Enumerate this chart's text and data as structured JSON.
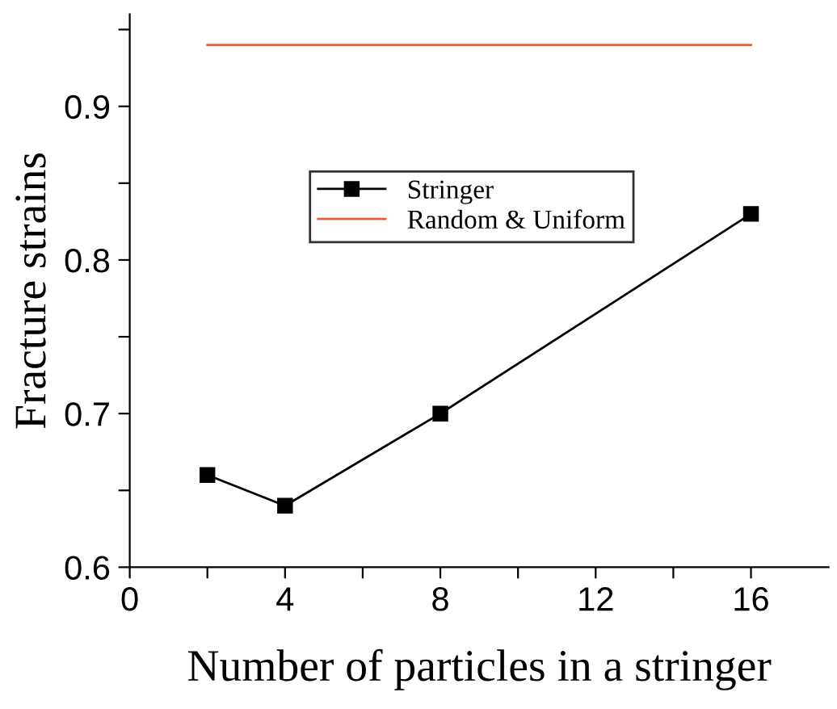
{
  "chart_data": {
    "type": "line",
    "xlabel": "Number of particles in a stringer",
    "ylabel": "Fracture strains",
    "series": [
      {
        "name": "Stringer",
        "color": "#000000",
        "x": [
          2,
          4,
          8,
          16
        ],
        "values": [
          0.66,
          0.64,
          0.7,
          0.83
        ],
        "marker": "square"
      },
      {
        "name": "Random & Uniform",
        "color": "#f05a3c",
        "x": [
          2,
          16
        ],
        "values": [
          0.94,
          0.94
        ],
        "marker": "none"
      }
    ],
    "xlim": [
      0,
      18
    ],
    "ylim": [
      0.6,
      0.96
    ],
    "xticks": [
      0,
      {
        "value": 2,
        "label": null
      },
      4,
      {
        "value": 6,
        "label": null
      },
      8,
      {
        "value": 10,
        "label": null
      },
      12,
      {
        "value": 14,
        "label": null
      },
      16
    ],
    "yticks": [
      0.6,
      {
        "value": 0.65,
        "label": null
      },
      0.7,
      {
        "value": 0.75,
        "label": null
      },
      0.8,
      {
        "value": 0.85,
        "label": null
      },
      0.9,
      {
        "value": 0.95,
        "label": null
      }
    ],
    "grid": false,
    "legend": "top right",
    "line_style": "solid"
  }
}
